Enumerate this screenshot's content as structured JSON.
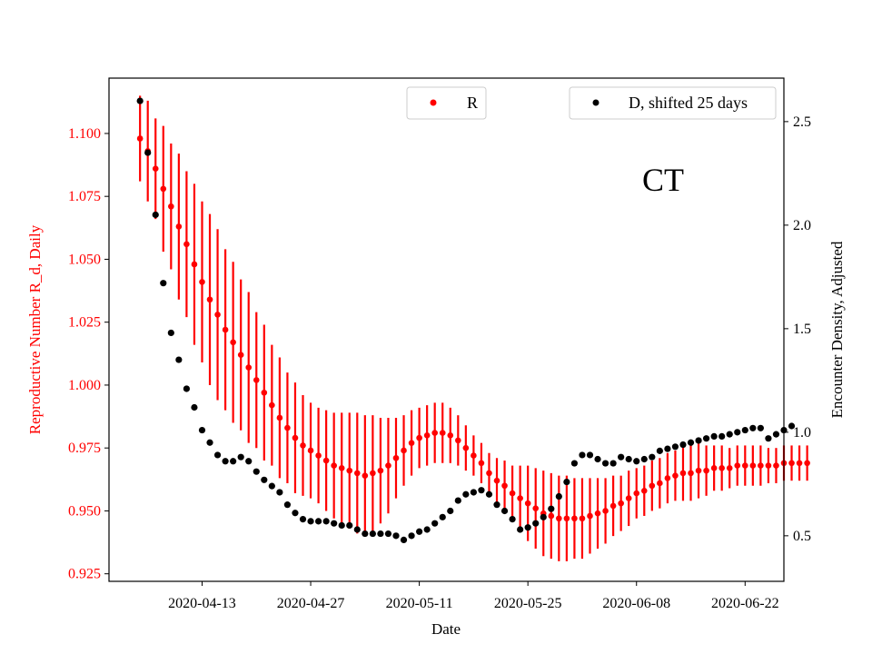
{
  "chart_data": {
    "type": "scatter",
    "annotation": "CT",
    "xlabel": "Date",
    "ylabel_left": "Reproductive Number R_d, Daily",
    "ylabel_right": "Encounter Density, Adjusted",
    "colors": {
      "R": "#ff0000",
      "D": "#000000",
      "left_axis": "#ff0000",
      "right_axis": "#000000"
    },
    "x_start": "2020-04-05",
    "xlim": [
      "2020-04-01",
      "2020-06-27"
    ],
    "x_ticks": [
      {
        "date": "2020-04-13",
        "label": "2020-04-13"
      },
      {
        "date": "2020-04-27",
        "label": "2020-04-27"
      },
      {
        "date": "2020-05-11",
        "label": "2020-05-11"
      },
      {
        "date": "2020-05-25",
        "label": "2020-05-25"
      },
      {
        "date": "2020-06-08",
        "label": "2020-06-08"
      },
      {
        "date": "2020-06-22",
        "label": "2020-06-22"
      }
    ],
    "ylim_left": [
      0.922,
      1.122
    ],
    "y_ticks_left": [
      {
        "value": 0.925,
        "label": "0.925"
      },
      {
        "value": 0.95,
        "label": "0.950"
      },
      {
        "value": 0.975,
        "label": "0.975"
      },
      {
        "value": 1.0,
        "label": "1.000"
      },
      {
        "value": 1.025,
        "label": "1.025"
      },
      {
        "value": 1.05,
        "label": "1.050"
      },
      {
        "value": 1.075,
        "label": "1.075"
      },
      {
        "value": 1.1,
        "label": "1.100"
      }
    ],
    "ylim_right": [
      0.28,
      2.71
    ],
    "y_ticks_right": [
      {
        "value": 0.5,
        "label": "0.5"
      },
      {
        "value": 1.0,
        "label": "1.0"
      },
      {
        "value": 1.5,
        "label": "1.5"
      },
      {
        "value": 2.0,
        "label": "2.0"
      },
      {
        "value": 2.5,
        "label": "2.5"
      }
    ],
    "legends": [
      {
        "series": "R",
        "label": "R",
        "position": "upper-center"
      },
      {
        "series": "D",
        "label": "D, shifted 25 days",
        "position": "upper-right"
      }
    ],
    "series": [
      {
        "name": "R",
        "axis": "left",
        "marker": "dot",
        "y": [
          1.098,
          1.093,
          1.086,
          1.078,
          1.071,
          1.063,
          1.056,
          1.048,
          1.041,
          1.034,
          1.028,
          1.022,
          1.017,
          1.012,
          1.007,
          1.002,
          0.997,
          0.992,
          0.987,
          0.983,
          0.979,
          0.976,
          0.974,
          0.972,
          0.97,
          0.968,
          0.967,
          0.966,
          0.965,
          0.964,
          0.965,
          0.966,
          0.968,
          0.971,
          0.974,
          0.977,
          0.979,
          0.98,
          0.981,
          0.981,
          0.98,
          0.978,
          0.975,
          0.972,
          0.969,
          0.965,
          0.962,
          0.96,
          0.957,
          0.955,
          0.953,
          0.951,
          0.949,
          0.948,
          0.947,
          0.947,
          0.947,
          0.947,
          0.948,
          0.949,
          0.95,
          0.952,
          0.953,
          0.955,
          0.957,
          0.958,
          0.96,
          0.961,
          0.963,
          0.964,
          0.965,
          0.965,
          0.966,
          0.966,
          0.967,
          0.967,
          0.967,
          0.968,
          0.968,
          0.968,
          0.968,
          0.968,
          0.968,
          0.969,
          0.969,
          0.969,
          0.969
        ],
        "err": [
          0.017,
          0.02,
          0.02,
          0.025,
          0.025,
          0.029,
          0.029,
          0.032,
          0.032,
          0.034,
          0.034,
          0.032,
          0.032,
          0.03,
          0.03,
          0.027,
          0.027,
          0.024,
          0.024,
          0.022,
          0.022,
          0.02,
          0.019,
          0.019,
          0.02,
          0.021,
          0.022,
          0.023,
          0.024,
          0.024,
          0.023,
          0.021,
          0.019,
          0.016,
          0.014,
          0.013,
          0.012,
          0.012,
          0.012,
          0.012,
          0.011,
          0.01,
          0.009,
          0.008,
          0.008,
          0.008,
          0.009,
          0.01,
          0.011,
          0.013,
          0.015,
          0.016,
          0.017,
          0.017,
          0.017,
          0.017,
          0.016,
          0.016,
          0.015,
          0.014,
          0.013,
          0.012,
          0.011,
          0.011,
          0.01,
          0.01,
          0.01,
          0.01,
          0.01,
          0.01,
          0.011,
          0.011,
          0.011,
          0.01,
          0.009,
          0.009,
          0.008,
          0.008,
          0.008,
          0.008,
          0.008,
          0.007,
          0.007,
          0.007,
          0.007,
          0.007,
          0.007
        ]
      },
      {
        "name": "D",
        "axis": "right",
        "marker": "dot",
        "y": [
          2.6,
          2.35,
          2.05,
          1.72,
          1.48,
          1.35,
          1.21,
          1.12,
          1.01,
          0.95,
          0.89,
          0.86,
          0.86,
          0.88,
          0.86,
          0.81,
          0.77,
          0.74,
          0.71,
          0.65,
          0.61,
          0.58,
          0.57,
          0.57,
          0.57,
          0.56,
          0.55,
          0.55,
          0.53,
          0.51,
          0.51,
          0.51,
          0.51,
          0.5,
          0.48,
          0.5,
          0.52,
          0.53,
          0.56,
          0.59,
          0.62,
          0.67,
          0.7,
          0.71,
          0.72,
          0.7,
          0.65,
          0.62,
          0.58,
          0.53,
          0.54,
          0.56,
          0.59,
          0.63,
          0.69,
          0.76,
          0.85,
          0.89,
          0.89,
          0.87,
          0.85,
          0.85,
          0.88,
          0.87,
          0.86,
          0.87,
          0.88,
          0.91,
          0.92,
          0.93,
          0.94,
          0.95,
          0.96,
          0.97,
          0.98,
          0.98,
          0.99,
          1.0,
          1.01,
          1.02,
          1.02,
          0.97,
          0.99,
          1.01,
          1.03
        ]
      }
    ]
  }
}
